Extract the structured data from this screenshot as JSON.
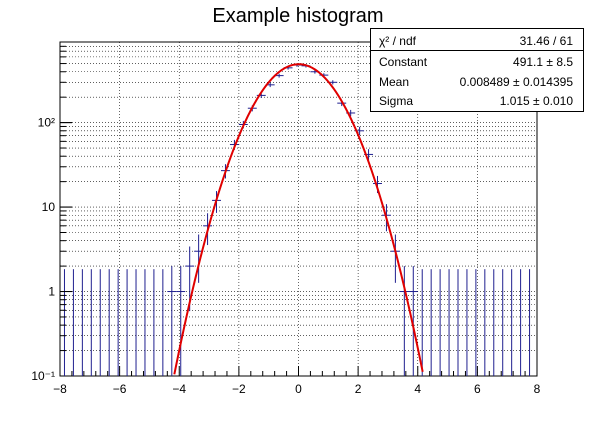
{
  "chart_data": {
    "type": "histogram",
    "title": "Example histogram",
    "xlabel": "",
    "ylabel": "",
    "xlim": [
      -8,
      8
    ],
    "ylim": [
      0.1,
      900
    ],
    "y_scale": "log",
    "grid": true,
    "x_ticks": [
      "−8",
      "−6",
      "−4",
      "−2",
      "0",
      "2",
      "4",
      "6",
      "8"
    ],
    "y_ticks": [
      {
        "value": 0.1,
        "label": "10⁻¹"
      },
      {
        "value": 1,
        "label": "1"
      },
      {
        "value": 10,
        "label": "10"
      },
      {
        "value": 100,
        "label": "10²"
      }
    ],
    "bin_width": 0.3,
    "bins": [
      {
        "x": -4.25,
        "y": 1
      },
      {
        "x": -3.95,
        "y": 1
      },
      {
        "x": -3.65,
        "y": 2
      },
      {
        "x": -3.35,
        "y": 3
      },
      {
        "x": -3.05,
        "y": 6
      },
      {
        "x": -2.75,
        "y": 12
      },
      {
        "x": -2.45,
        "y": 27
      },
      {
        "x": -2.15,
        "y": 55
      },
      {
        "x": -1.85,
        "y": 95
      },
      {
        "x": -1.55,
        "y": 148
      },
      {
        "x": -1.25,
        "y": 210
      },
      {
        "x": -0.95,
        "y": 280
      },
      {
        "x": -0.65,
        "y": 360
      },
      {
        "x": -0.35,
        "y": 445
      },
      {
        "x": -0.05,
        "y": 480
      },
      {
        "x": 0.25,
        "y": 470
      },
      {
        "x": 0.55,
        "y": 400
      },
      {
        "x": 0.85,
        "y": 365
      },
      {
        "x": 1.15,
        "y": 300
      },
      {
        "x": 1.45,
        "y": 170
      },
      {
        "x": 1.75,
        "y": 130
      },
      {
        "x": 2.05,
        "y": 80
      },
      {
        "x": 2.35,
        "y": 42
      },
      {
        "x": 2.65,
        "y": 19
      },
      {
        "x": 2.95,
        "y": 8
      },
      {
        "x": 3.25,
        "y": 3
      },
      {
        "x": 3.55,
        "y": 1
      },
      {
        "x": 3.85,
        "y": 1
      }
    ],
    "empty_bin_error_max": 1.84,
    "fit": {
      "function": "gaus",
      "constant": 491.1,
      "mean": 0.008489,
      "sigma": 1.015,
      "x_range": [
        -4.2,
        4.2
      ]
    },
    "colors": {
      "histogram": "#1f1f8f",
      "fit": "#e00000",
      "grid": "#000000"
    },
    "stats": {
      "placement": "top-right",
      "rows": [
        {
          "label": "χ² / ndf",
          "value": "31.46 / 61"
        },
        {
          "label": "Constant",
          "value": "491.1 ± 8.5"
        },
        {
          "label": "Mean",
          "value": "0.008489  ± 0.014395"
        },
        {
          "label": "Sigma",
          "value": "1.015  ± 0.010"
        }
      ]
    }
  }
}
